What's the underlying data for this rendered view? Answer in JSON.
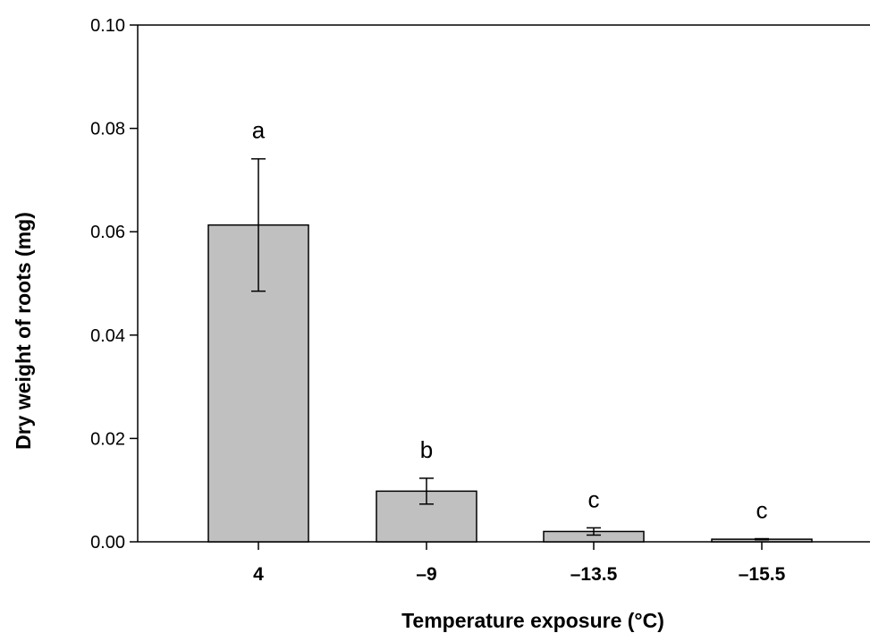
{
  "chart_data": {
    "type": "bar",
    "title": "",
    "xlabel": "Temperature exposure (°C)",
    "ylabel": "Dry weight of roots (mg)",
    "ylim": [
      0,
      0.1
    ],
    "yticks": [
      "0.00",
      "0.02",
      "0.04",
      "0.06",
      "0.08",
      "0.10"
    ],
    "categories": [
      "4",
      "–9",
      "–13.5",
      "–15.5"
    ],
    "values": [
      0.0613,
      0.0098,
      0.002,
      0.0005
    ],
    "error": [
      0.0128,
      0.0025,
      0.0007,
      0.0001
    ],
    "significance_letters": [
      "a",
      "b",
      "c",
      "c"
    ],
    "bar_color": "#c0c0c0",
    "grid": false,
    "legend": "none"
  }
}
